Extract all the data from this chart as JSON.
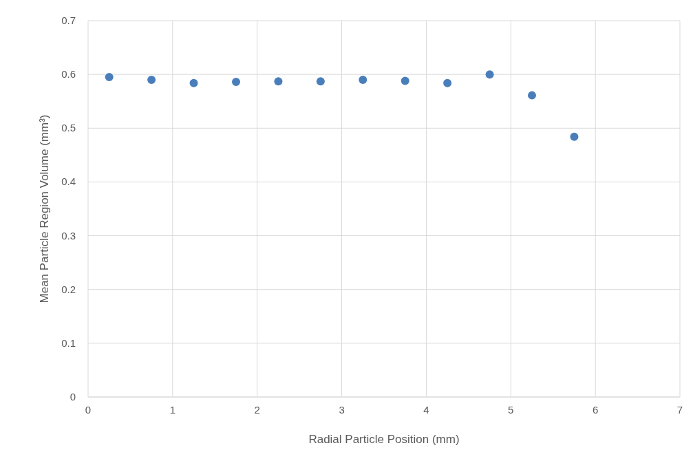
{
  "chart_data": {
    "type": "scatter",
    "xlabel": "Radial Particle Position (mm)",
    "ylabel": "Mean Particle Region Volume (mm³)",
    "x": [
      0.25,
      0.75,
      1.25,
      1.75,
      2.25,
      2.75,
      3.25,
      3.75,
      4.25,
      4.75,
      5.25,
      5.75
    ],
    "series": [
      {
        "color": "#4a7ebb",
        "values": [
          0.595,
          0.59,
          0.584,
          0.586,
          0.587,
          0.587,
          0.59,
          0.588,
          0.584,
          0.6,
          0.561,
          0.484
        ]
      }
    ],
    "xlim": [
      0,
      7
    ],
    "xticks": [
      0,
      1,
      2,
      3,
      4,
      5,
      6,
      7
    ],
    "ylim": [
      0,
      0.7
    ],
    "yticks": [
      0,
      0.1,
      0.2,
      0.3,
      0.4,
      0.5,
      0.6,
      0.7
    ],
    "grid": true,
    "marker": "circle"
  }
}
